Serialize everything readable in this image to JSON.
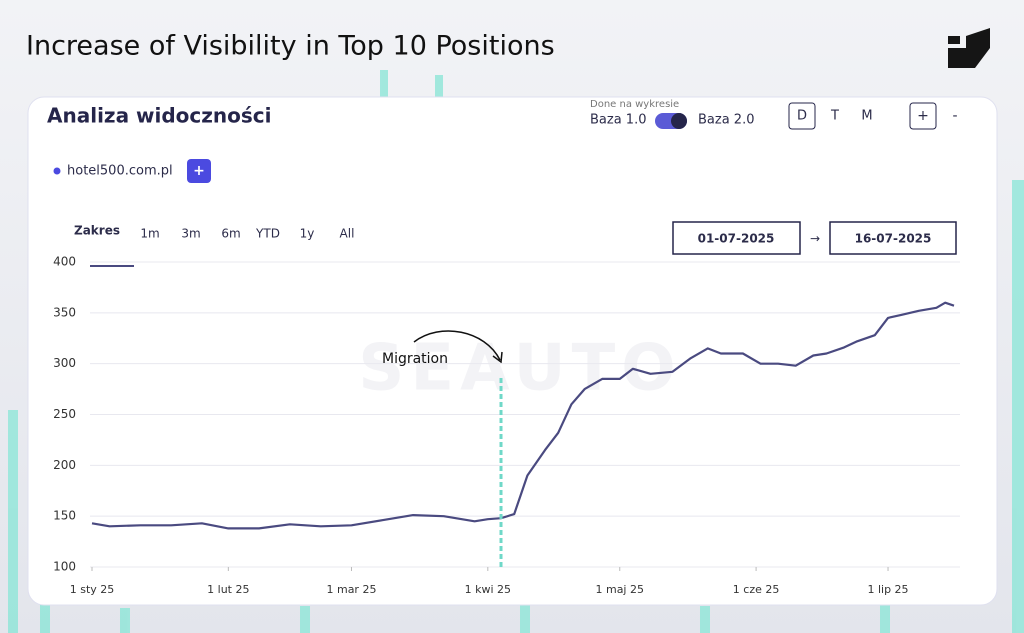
{
  "header": {
    "title": "Increase of Visibility in Top 10 Positions"
  },
  "panel": {
    "title": "Analiza widoczności",
    "toggle": {
      "caption": "Done na wykresie",
      "left": "Baza 1.0",
      "right": "Baza 2.0"
    },
    "views": [
      "D",
      "T",
      "M"
    ],
    "zoom": [
      "+",
      "-"
    ],
    "site_add": "+",
    "range": {
      "label": "Zakres",
      "options": [
        "1m",
        "3m",
        "6m",
        "YTD",
        "1y",
        "All"
      ]
    },
    "dates": {
      "from": "01-07-2025",
      "arrow": "→",
      "to": "16-07-2025"
    },
    "watermark": "SEAUTO"
  },
  "chart_data": {
    "type": "line",
    "x": [
      "2025-01-01",
      "2025-01-05",
      "2025-01-12",
      "2025-01-19",
      "2025-01-26",
      "2025-02-01",
      "2025-02-08",
      "2025-02-15",
      "2025-02-22",
      "2025-03-01",
      "2025-03-08",
      "2025-03-15",
      "2025-03-22",
      "2025-03-29",
      "2025-04-01",
      "2025-04-04",
      "2025-04-07",
      "2025-04-10",
      "2025-04-14",
      "2025-04-17",
      "2025-04-20",
      "2025-04-23",
      "2025-04-27",
      "2025-05-01",
      "2025-05-04",
      "2025-05-08",
      "2025-05-13",
      "2025-05-17",
      "2025-05-21",
      "2025-05-24",
      "2025-05-29",
      "2025-06-02",
      "2025-06-06",
      "2025-06-10",
      "2025-06-14",
      "2025-06-17",
      "2025-06-21",
      "2025-06-24",
      "2025-06-28",
      "2025-07-01",
      "2025-07-04",
      "2025-07-08",
      "2025-07-12",
      "2025-07-14",
      "2025-07-16"
    ],
    "series": [
      {
        "name": "hotel500.com.pl",
        "color": "#4a4a80",
        "values": [
          143,
          140,
          141,
          141,
          143,
          138,
          138,
          142,
          140,
          141,
          146,
          151,
          150,
          145,
          147,
          148,
          152,
          190,
          215,
          232,
          260,
          275,
          285,
          285,
          295,
          290,
          292,
          305,
          315,
          310,
          310,
          300,
          300,
          298,
          308,
          310,
          316,
          322,
          328,
          345,
          348,
          352,
          355,
          360,
          357
        ]
      }
    ],
    "annotations": [
      {
        "text": "Migration",
        "x": "2025-04-04"
      }
    ],
    "xlim": [
      "2025-01-01",
      "2025-07-16"
    ],
    "xticks": [
      {
        "value": "2025-01-01",
        "label": "1 sty 25"
      },
      {
        "value": "2025-02-01",
        "label": "1 lut 25"
      },
      {
        "value": "2025-03-01",
        "label": "1 mar 25"
      },
      {
        "value": "2025-04-01",
        "label": "1 kwi 25"
      },
      {
        "value": "2025-05-01",
        "label": "1 maj 25"
      },
      {
        "value": "2025-06-01",
        "label": "1 cze 25"
      },
      {
        "value": "2025-07-01",
        "label": "1 lip 25"
      }
    ],
    "ylim": [
      100,
      400
    ],
    "yticks": [
      100,
      150,
      200,
      250,
      300,
      350,
      400
    ],
    "grid": true
  }
}
